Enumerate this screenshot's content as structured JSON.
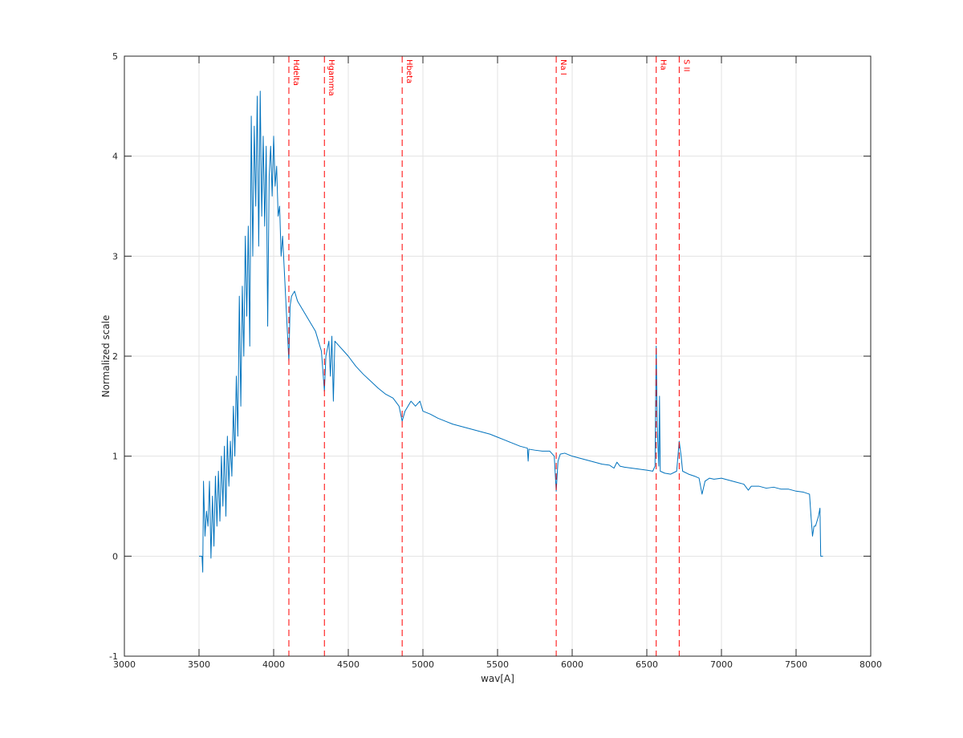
{
  "chart_data": {
    "type": "line",
    "xlabel": "wav[A]",
    "ylabel": "Normalized scale",
    "xlim": [
      3000,
      8000
    ],
    "xticks": [
      3000,
      3500,
      4000,
      4500,
      5000,
      5500,
      6000,
      6500,
      7000,
      7500,
      8000
    ],
    "ylim": [
      -1,
      5
    ],
    "yticks": [
      -1,
      0,
      1,
      2,
      3,
      4,
      5
    ],
    "grid": true,
    "x": [
      3500,
      3520,
      3525,
      3530,
      3540,
      3550,
      3560,
      3570,
      3580,
      3590,
      3600,
      3610,
      3620,
      3630,
      3640,
      3650,
      3660,
      3670,
      3680,
      3690,
      3700,
      3710,
      3720,
      3730,
      3740,
      3750,
      3760,
      3770,
      3780,
      3790,
      3800,
      3810,
      3820,
      3830,
      3840,
      3850,
      3860,
      3870,
      3880,
      3890,
      3900,
      3910,
      3920,
      3930,
      3940,
      3950,
      3960,
      3970,
      3980,
      3990,
      4000,
      4010,
      4020,
      4030,
      4040,
      4050,
      4060,
      4070,
      4080,
      4090,
      4102,
      4110,
      4120,
      4140,
      4160,
      4180,
      4200,
      4220,
      4240,
      4260,
      4280,
      4300,
      4320,
      4340,
      4350,
      4370,
      4380,
      4390,
      4400,
      4410,
      4440,
      4470,
      4500,
      4550,
      4600,
      4650,
      4700,
      4750,
      4800,
      4840,
      4861,
      4880,
      4920,
      4950,
      4980,
      5000,
      5050,
      5100,
      5150,
      5200,
      5250,
      5300,
      5350,
      5400,
      5450,
      5500,
      5550,
      5600,
      5650,
      5700,
      5705,
      5710,
      5750,
      5800,
      5850,
      5880,
      5893,
      5905,
      5920,
      5950,
      6000,
      6050,
      6100,
      6150,
      6200,
      6250,
      6280,
      6300,
      6320,
      6350,
      6400,
      6450,
      6500,
      6540,
      6555,
      6563,
      6570,
      6580,
      6585,
      6590,
      6620,
      6660,
      6700,
      6717,
      6730,
      6740,
      6780,
      6820,
      6850,
      6870,
      6890,
      6920,
      6950,
      7000,
      7050,
      7100,
      7150,
      7180,
      7200,
      7250,
      7300,
      7350,
      7400,
      7450,
      7500,
      7550,
      7590,
      7600,
      7610,
      7620,
      7630,
      7650,
      7660,
      7665,
      7680
    ],
    "series": [
      {
        "color": "#0072bd",
        "values": [
          0,
          0,
          -0.16,
          0.75,
          0.2,
          0.45,
          0.3,
          0.75,
          -0.02,
          0.6,
          0.1,
          0.8,
          0.3,
          0.85,
          0.35,
          1.0,
          0.5,
          1.1,
          0.4,
          1.2,
          0.7,
          1.15,
          0.8,
          1.5,
          1.0,
          1.8,
          1.2,
          2.6,
          1.5,
          2.7,
          2.0,
          3.2,
          2.4,
          3.3,
          2.1,
          4.4,
          3.0,
          4.3,
          3.5,
          4.6,
          3.1,
          4.65,
          3.4,
          4.2,
          3.3,
          4.1,
          2.3,
          3.8,
          4.1,
          3.6,
          4.2,
          3.7,
          3.9,
          3.4,
          3.5,
          3.0,
          3.2,
          2.9,
          2.6,
          2.3,
          1.95,
          2.5,
          2.6,
          2.65,
          2.55,
          2.5,
          2.45,
          2.4,
          2.35,
          2.3,
          2.25,
          2.15,
          2.05,
          1.65,
          2.0,
          2.15,
          1.8,
          2.2,
          1.55,
          2.15,
          2.1,
          2.05,
          2.0,
          1.9,
          1.82,
          1.75,
          1.68,
          1.62,
          1.58,
          1.5,
          1.35,
          1.45,
          1.55,
          1.5,
          1.55,
          1.45,
          1.42,
          1.38,
          1.35,
          1.32,
          1.3,
          1.28,
          1.26,
          1.24,
          1.22,
          1.19,
          1.16,
          1.13,
          1.1,
          1.08,
          0.95,
          1.07,
          1.06,
          1.05,
          1.05,
          1.0,
          0.65,
          0.95,
          1.02,
          1.03,
          1.0,
          0.98,
          0.96,
          0.94,
          0.92,
          0.91,
          0.88,
          0.94,
          0.9,
          0.89,
          0.88,
          0.87,
          0.86,
          0.85,
          0.9,
          2.1,
          1.3,
          0.9,
          1.6,
          0.85,
          0.83,
          0.82,
          0.85,
          1.15,
          1.0,
          0.85,
          0.82,
          0.8,
          0.78,
          0.62,
          0.75,
          0.78,
          0.77,
          0.78,
          0.76,
          0.74,
          0.72,
          0.66,
          0.7,
          0.7,
          0.68,
          0.69,
          0.67,
          0.67,
          0.65,
          0.64,
          0.62,
          0.4,
          0.2,
          0.3,
          0.3,
          0.4,
          0.48,
          0.0,
          0.0
        ]
      }
    ],
    "annotation_color": "#ff0000",
    "annotations": [
      {
        "x": 4102,
        "label": "Hdelta"
      },
      {
        "x": 4340,
        "label": "Hgamma"
      },
      {
        "x": 4861,
        "label": "Hbeta"
      },
      {
        "x": 5893,
        "label": "Na I"
      },
      {
        "x": 6563,
        "label": "Ha"
      },
      {
        "x": 6717,
        "label": "S II"
      }
    ]
  }
}
